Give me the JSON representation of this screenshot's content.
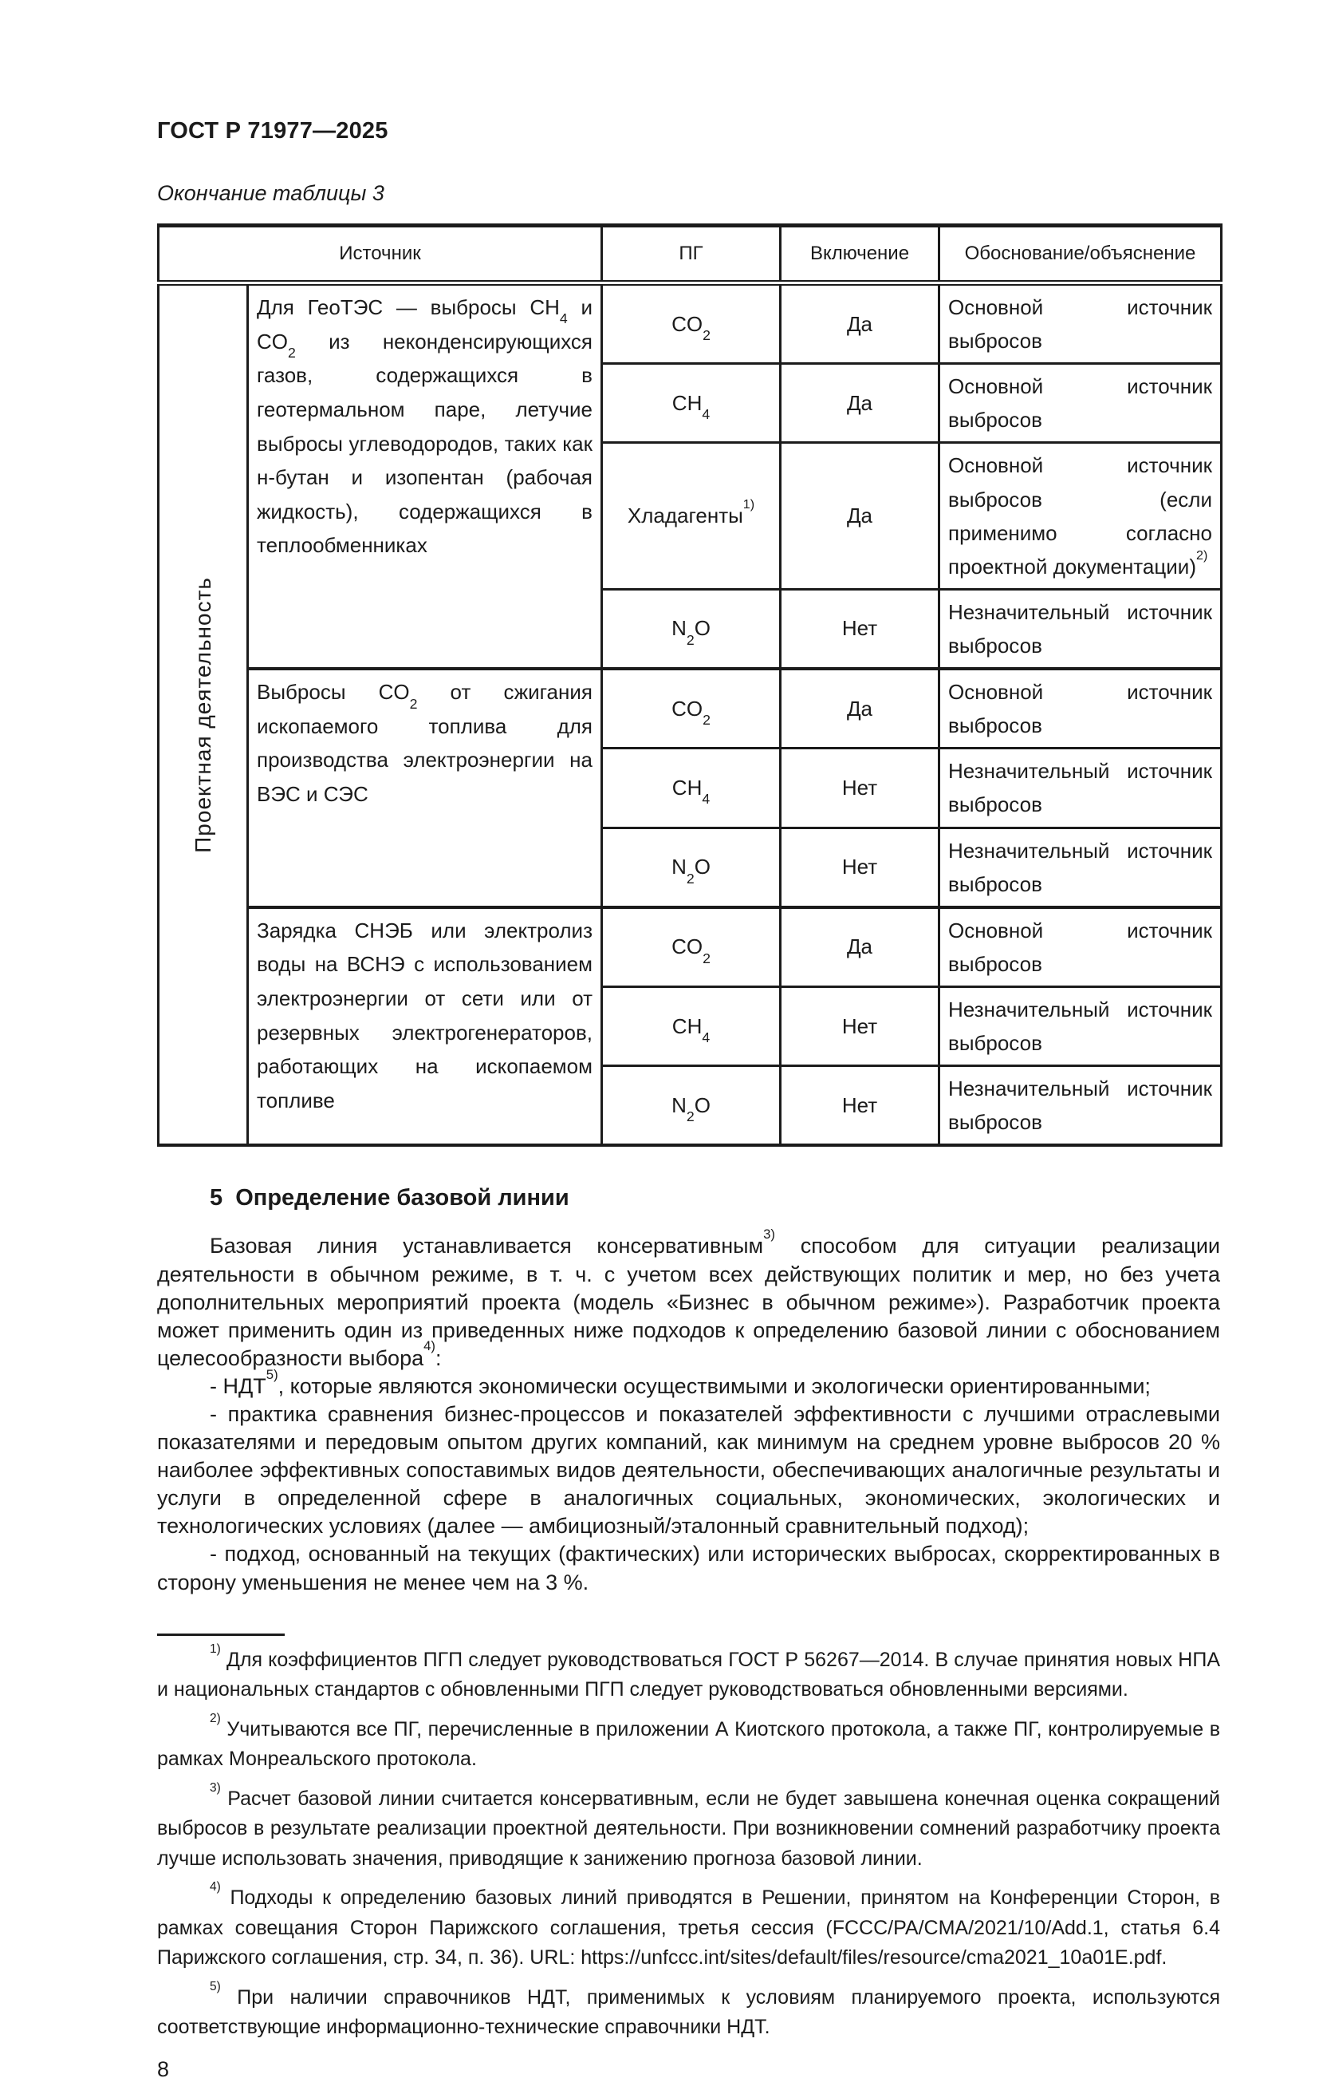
{
  "page": {
    "doc_title": "ГОСТ Р 71977—2025",
    "table_caption": "Окончание таблицы 3",
    "page_number": "8"
  },
  "table": {
    "headers": [
      "Источник",
      "ПГ",
      "Включение",
      "Обоснование/объяснение"
    ],
    "row_group_label": "Проектная деятельность",
    "groups": [
      {
        "source": "Для ГеоТЭС — выбросы CH~4~ и CO~2~ из неконденсирующихся газов, содержащихся в геотермальном паре, летучие выбросы углеводородов, таких как н-бутан и изопентан (рабочая жидкость), содержащихся в теплообменниках",
        "rows": [
          {
            "gas": "CO~2~",
            "inclusion": "Да",
            "justification": "Основной источник выбросов"
          },
          {
            "gas": "CH~4~",
            "inclusion": "Да",
            "justification": "Основной источник выбросов"
          },
          {
            "gas": "Хладагенты^1)^",
            "inclusion": "Да",
            "justification": "Основной источник выбросов (если применимо согласно проектной документации)^2)^"
          },
          {
            "gas": "N~2~O",
            "inclusion": "Нет",
            "justification": "Незначительный источник выбросов"
          }
        ]
      },
      {
        "source": "Выбросы CO~2~ от сжигания ископаемого топлива для производства электроэнергии на ВЭС и СЭС",
        "rows": [
          {
            "gas": "CO~2~",
            "inclusion": "Да",
            "justification": "Основной источник выбросов"
          },
          {
            "gas": "CH~4~",
            "inclusion": "Нет",
            "justification": "Незначительный источник выбросов"
          },
          {
            "gas": "N~2~O",
            "inclusion": "Нет",
            "justification": "Незначительный источник выбросов"
          }
        ]
      },
      {
        "source": "Зарядка СНЭБ или электролиз воды на ВСНЭ с использованием электроэнергии от сети или от резервных электрогенераторов, работающих на ископаемом топливе",
        "rows": [
          {
            "gas": "CO~2~",
            "inclusion": "Да",
            "justification": "Основной источник выбросов"
          },
          {
            "gas": "CH~4~",
            "inclusion": "Нет",
            "justification": "Незначительный источник выбросов"
          },
          {
            "gas": "N~2~O",
            "inclusion": "Нет",
            "justification": "Незначительный источник выбросов"
          }
        ]
      }
    ]
  },
  "section": {
    "heading": "5  Определение базовой линии",
    "paragraphs": [
      "Базовая линия устанавливается консервативным^3)^ способом для ситуации реализации деятельности в обычном режиме, в т. ч. с учетом всех действующих политик и мер, но без учета дополнительных мероприятий проекта (модель «Бизнес в обычном режиме»). Разработчик проекта может применить один из приведенных ниже подходов к определению базовой линии с обоснованием целесообразности выбора^4)^:",
      "- НДТ^5)^, которые являются экономически осуществимыми и экологически ориентированными;",
      "- практика сравнения бизнес-процессов и показателей эффективности с лучшими отраслевыми показателями и передовым опытом других компаний, как минимум на среднем уровне выбросов 20 % наиболее эффективных сопоставимых видов деятельности, обеспечивающих аналогичные результаты и услуги в определенной сфере в аналогичных социальных, экономических, экологических и технологических условиях (далее — амбициозный/эталонный сравнительный подход);",
      "- подход, основанный на текущих (фактических) или исторических выбросах, скорректированных в сторону уменьшения не менее чем на 3 %."
    ]
  },
  "footnotes": [
    "^1)^ Для коэффициентов ПГП следует руководствоваться ГОСТ Р 56267—2014. В случае принятия новых НПА и национальных стандартов с обновленными ПГП следует руководствоваться обновленными версиями.",
    "^2)^ Учитываются все ПГ, перечисленные в приложении А Киотского протокола, а также ПГ, контролируемые в рамках Монреальского протокола.",
    "^3)^ Расчет базовой линии считается консервативным, если не будет завышена конечная оценка сокращений выбросов в результате реализации проектной деятельности. При возникновении сомнений разработчику проекта лучше использовать значения, приводящие к занижению прогноза базовой линии.",
    "^4)^ Подходы к определению базовых линий приводятся в Решении, принятом на Конференции Сторон, в рамках совещания Сторон Парижского соглашения, третья сессия (FCCC/PA/CMA/2021/10/Add.1, статья 6.4 Парижского соглашения, стр. 34, п. 36). URL: https://unfccc.int/sites/default/files/resource/cma2021_10a01E.pdf.",
    "^5)^ При наличии справочников НДТ, применимых к условиям планируемого проекта, используются соответствующие информационно-технические справочники НДТ."
  ],
  "colors": {
    "text": "#1b1b1b",
    "border": "#1b1b1b",
    "background": "#ffffff"
  }
}
